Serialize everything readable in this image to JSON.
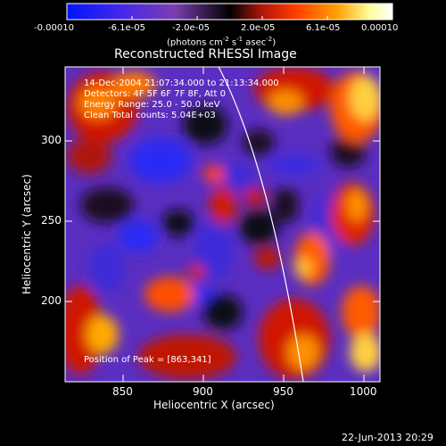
{
  "colorbar": {
    "ticks": [
      "-0.00010",
      "-6.1e-05",
      "-2.0e-05",
      "2.0e-05",
      "6.1e-05",
      "0.00010"
    ],
    "units_prefix": "(photons cm",
    "units_sup1": "-2",
    "units_mid": " s",
    "units_sup2": "-1",
    "units_suffix": " asec",
    "units_sup3": "-2",
    "units_close": ")",
    "colors": [
      "#0015ff",
      "#5a20e0",
      "#7b3fb0",
      "#000000",
      "#b0170a",
      "#ff3b00",
      "#ffa000",
      "#ffff9a",
      "#ffffff"
    ]
  },
  "title": "Reconstructed RHESSI Image",
  "info": {
    "time": "14-Dec-2004 21:07:34.000 to 21:13:34.000",
    "detectors": "Detectors: 4F 5F 6F 7F 8F, Att 0",
    "energy": "Energy Range: 25.0 - 50.0 keV",
    "clean": "Clean    Total counts: 5.04E+03",
    "peak": "Position of Peak = [863,341]"
  },
  "axes": {
    "xlabel": "Heliocentric X (arcsec)",
    "ylabel": "Heliocentric Y (arcsec)",
    "xticks": [
      "850",
      "900",
      "950",
      "1000"
    ],
    "yticks": [
      "200",
      "250",
      "300"
    ]
  },
  "footer": {
    "date": "22-Jun-2013 20:29"
  }
}
